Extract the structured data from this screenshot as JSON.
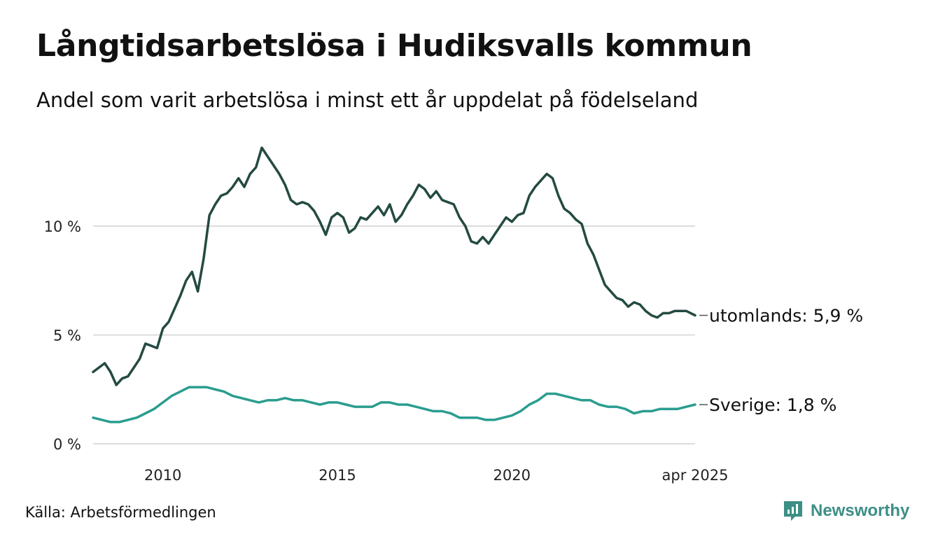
{
  "chart_data": {
    "type": "line",
    "title": "Långtidsarbetslösa i Hudiksvalls kommun",
    "subtitle": "Andel som varit arbetslösa i minst ett år uppdelat på födelseland",
    "source": "Källa: Arbetsförmedlingen",
    "x_range": [
      "2008-01",
      "2025-04"
    ],
    "ylim": [
      0,
      14
    ],
    "y_ticks": [
      {
        "value": 0,
        "label": "0 %"
      },
      {
        "value": 5,
        "label": "5 %"
      },
      {
        "value": 10,
        "label": "10 %"
      }
    ],
    "x_ticks": [
      {
        "value": "2010-01",
        "label": "2010"
      },
      {
        "value": "2015-01",
        "label": "2015"
      },
      {
        "value": "2020-01",
        "label": "2020"
      },
      {
        "value": "2025-04",
        "label": "apr 2025"
      }
    ],
    "grid": true,
    "legend": "direct labels at line ends (right)",
    "series": [
      {
        "name": "utomlands",
        "end_label": "utomlands: 5,9 %",
        "color": "#244a42",
        "points": [
          [
            "2008-01",
            3.3
          ],
          [
            "2008-03",
            3.5
          ],
          [
            "2008-05",
            3.7
          ],
          [
            "2008-07",
            3.3
          ],
          [
            "2008-09",
            2.7
          ],
          [
            "2008-11",
            3.0
          ],
          [
            "2009-01",
            3.1
          ],
          [
            "2009-03",
            3.5
          ],
          [
            "2009-05",
            3.9
          ],
          [
            "2009-07",
            4.6
          ],
          [
            "2009-09",
            4.5
          ],
          [
            "2009-11",
            4.4
          ],
          [
            "2010-01",
            5.3
          ],
          [
            "2010-03",
            5.6
          ],
          [
            "2010-05",
            6.2
          ],
          [
            "2010-07",
            6.8
          ],
          [
            "2010-09",
            7.5
          ],
          [
            "2010-11",
            7.9
          ],
          [
            "2011-01",
            7.0
          ],
          [
            "2011-03",
            8.5
          ],
          [
            "2011-05",
            10.5
          ],
          [
            "2011-07",
            11.0
          ],
          [
            "2011-09",
            11.4
          ],
          [
            "2011-11",
            11.5
          ],
          [
            "2012-01",
            11.8
          ],
          [
            "2012-03",
            12.2
          ],
          [
            "2012-05",
            11.8
          ],
          [
            "2012-07",
            12.4
          ],
          [
            "2012-09",
            12.7
          ],
          [
            "2012-11",
            13.6
          ],
          [
            "2013-01",
            13.2
          ],
          [
            "2013-03",
            12.8
          ],
          [
            "2013-05",
            12.4
          ],
          [
            "2013-07",
            11.9
          ],
          [
            "2013-09",
            11.2
          ],
          [
            "2013-11",
            11.0
          ],
          [
            "2014-01",
            11.1
          ],
          [
            "2014-03",
            11.0
          ],
          [
            "2014-05",
            10.7
          ],
          [
            "2014-07",
            10.2
          ],
          [
            "2014-09",
            9.6
          ],
          [
            "2014-11",
            10.4
          ],
          [
            "2015-01",
            10.6
          ],
          [
            "2015-03",
            10.4
          ],
          [
            "2015-05",
            9.7
          ],
          [
            "2015-07",
            9.9
          ],
          [
            "2015-09",
            10.4
          ],
          [
            "2015-11",
            10.3
          ],
          [
            "2016-01",
            10.6
          ],
          [
            "2016-03",
            10.9
          ],
          [
            "2016-05",
            10.5
          ],
          [
            "2016-07",
            11.0
          ],
          [
            "2016-09",
            10.2
          ],
          [
            "2016-11",
            10.5
          ],
          [
            "2017-01",
            11.0
          ],
          [
            "2017-03",
            11.4
          ],
          [
            "2017-05",
            11.9
          ],
          [
            "2017-07",
            11.7
          ],
          [
            "2017-09",
            11.3
          ],
          [
            "2017-11",
            11.6
          ],
          [
            "2018-01",
            11.2
          ],
          [
            "2018-03",
            11.1
          ],
          [
            "2018-05",
            11.0
          ],
          [
            "2018-07",
            10.4
          ],
          [
            "2018-09",
            10.0
          ],
          [
            "2018-11",
            9.3
          ],
          [
            "2019-01",
            9.2
          ],
          [
            "2019-03",
            9.5
          ],
          [
            "2019-05",
            9.2
          ],
          [
            "2019-07",
            9.6
          ],
          [
            "2019-09",
            10.0
          ],
          [
            "2019-11",
            10.4
          ],
          [
            "2020-01",
            10.2
          ],
          [
            "2020-03",
            10.5
          ],
          [
            "2020-05",
            10.6
          ],
          [
            "2020-07",
            11.4
          ],
          [
            "2020-09",
            11.8
          ],
          [
            "2020-11",
            12.1
          ],
          [
            "2021-01",
            12.4
          ],
          [
            "2021-03",
            12.2
          ],
          [
            "2021-05",
            11.4
          ],
          [
            "2021-07",
            10.8
          ],
          [
            "2021-09",
            10.6
          ],
          [
            "2021-11",
            10.3
          ],
          [
            "2022-01",
            10.1
          ],
          [
            "2022-03",
            9.2
          ],
          [
            "2022-05",
            8.7
          ],
          [
            "2022-07",
            8.0
          ],
          [
            "2022-09",
            7.3
          ],
          [
            "2022-11",
            7.0
          ],
          [
            "2023-01",
            6.7
          ],
          [
            "2023-03",
            6.6
          ],
          [
            "2023-05",
            6.3
          ],
          [
            "2023-07",
            6.5
          ],
          [
            "2023-09",
            6.4
          ],
          [
            "2023-11",
            6.1
          ],
          [
            "2024-01",
            5.9
          ],
          [
            "2024-03",
            5.8
          ],
          [
            "2024-05",
            6.0
          ],
          [
            "2024-07",
            6.0
          ],
          [
            "2024-09",
            6.1
          ],
          [
            "2024-11",
            6.1
          ],
          [
            "2025-01",
            6.1
          ],
          [
            "2025-04",
            5.9
          ]
        ]
      },
      {
        "name": "Sverige",
        "end_label": "Sverige: 1,8 %",
        "color": "#2a9d8f",
        "points": [
          [
            "2008-01",
            1.2
          ],
          [
            "2008-04",
            1.1
          ],
          [
            "2008-07",
            1.0
          ],
          [
            "2008-10",
            1.0
          ],
          [
            "2009-01",
            1.1
          ],
          [
            "2009-04",
            1.2
          ],
          [
            "2009-07",
            1.4
          ],
          [
            "2009-10",
            1.6
          ],
          [
            "2010-01",
            1.9
          ],
          [
            "2010-04",
            2.2
          ],
          [
            "2010-07",
            2.4
          ],
          [
            "2010-10",
            2.6
          ],
          [
            "2011-01",
            2.6
          ],
          [
            "2011-04",
            2.6
          ],
          [
            "2011-07",
            2.5
          ],
          [
            "2011-10",
            2.4
          ],
          [
            "2012-01",
            2.2
          ],
          [
            "2012-04",
            2.1
          ],
          [
            "2012-07",
            2.0
          ],
          [
            "2012-10",
            1.9
          ],
          [
            "2013-01",
            2.0
          ],
          [
            "2013-04",
            2.0
          ],
          [
            "2013-07",
            2.1
          ],
          [
            "2013-10",
            2.0
          ],
          [
            "2014-01",
            2.0
          ],
          [
            "2014-04",
            1.9
          ],
          [
            "2014-07",
            1.8
          ],
          [
            "2014-10",
            1.9
          ],
          [
            "2015-01",
            1.9
          ],
          [
            "2015-04",
            1.8
          ],
          [
            "2015-07",
            1.7
          ],
          [
            "2015-10",
            1.7
          ],
          [
            "2016-01",
            1.7
          ],
          [
            "2016-04",
            1.9
          ],
          [
            "2016-07",
            1.9
          ],
          [
            "2016-10",
            1.8
          ],
          [
            "2017-01",
            1.8
          ],
          [
            "2017-04",
            1.7
          ],
          [
            "2017-07",
            1.6
          ],
          [
            "2017-10",
            1.5
          ],
          [
            "2018-01",
            1.5
          ],
          [
            "2018-04",
            1.4
          ],
          [
            "2018-07",
            1.2
          ],
          [
            "2018-10",
            1.2
          ],
          [
            "2019-01",
            1.2
          ],
          [
            "2019-04",
            1.1
          ],
          [
            "2019-07",
            1.1
          ],
          [
            "2019-10",
            1.2
          ],
          [
            "2020-01",
            1.3
          ],
          [
            "2020-04",
            1.5
          ],
          [
            "2020-07",
            1.8
          ],
          [
            "2020-10",
            2.0
          ],
          [
            "2021-01",
            2.3
          ],
          [
            "2021-04",
            2.3
          ],
          [
            "2021-07",
            2.2
          ],
          [
            "2021-10",
            2.1
          ],
          [
            "2022-01",
            2.0
          ],
          [
            "2022-04",
            2.0
          ],
          [
            "2022-07",
            1.8
          ],
          [
            "2022-10",
            1.7
          ],
          [
            "2023-01",
            1.7
          ],
          [
            "2023-04",
            1.6
          ],
          [
            "2023-07",
            1.4
          ],
          [
            "2023-10",
            1.5
          ],
          [
            "2024-01",
            1.5
          ],
          [
            "2024-04",
            1.6
          ],
          [
            "2024-07",
            1.6
          ],
          [
            "2024-10",
            1.6
          ],
          [
            "2025-01",
            1.7
          ],
          [
            "2025-04",
            1.8
          ]
        ]
      }
    ]
  },
  "brand": {
    "name": "Newsworthy",
    "color": "#3d8f86",
    "icon": "newsworthy-logo-icon"
  }
}
